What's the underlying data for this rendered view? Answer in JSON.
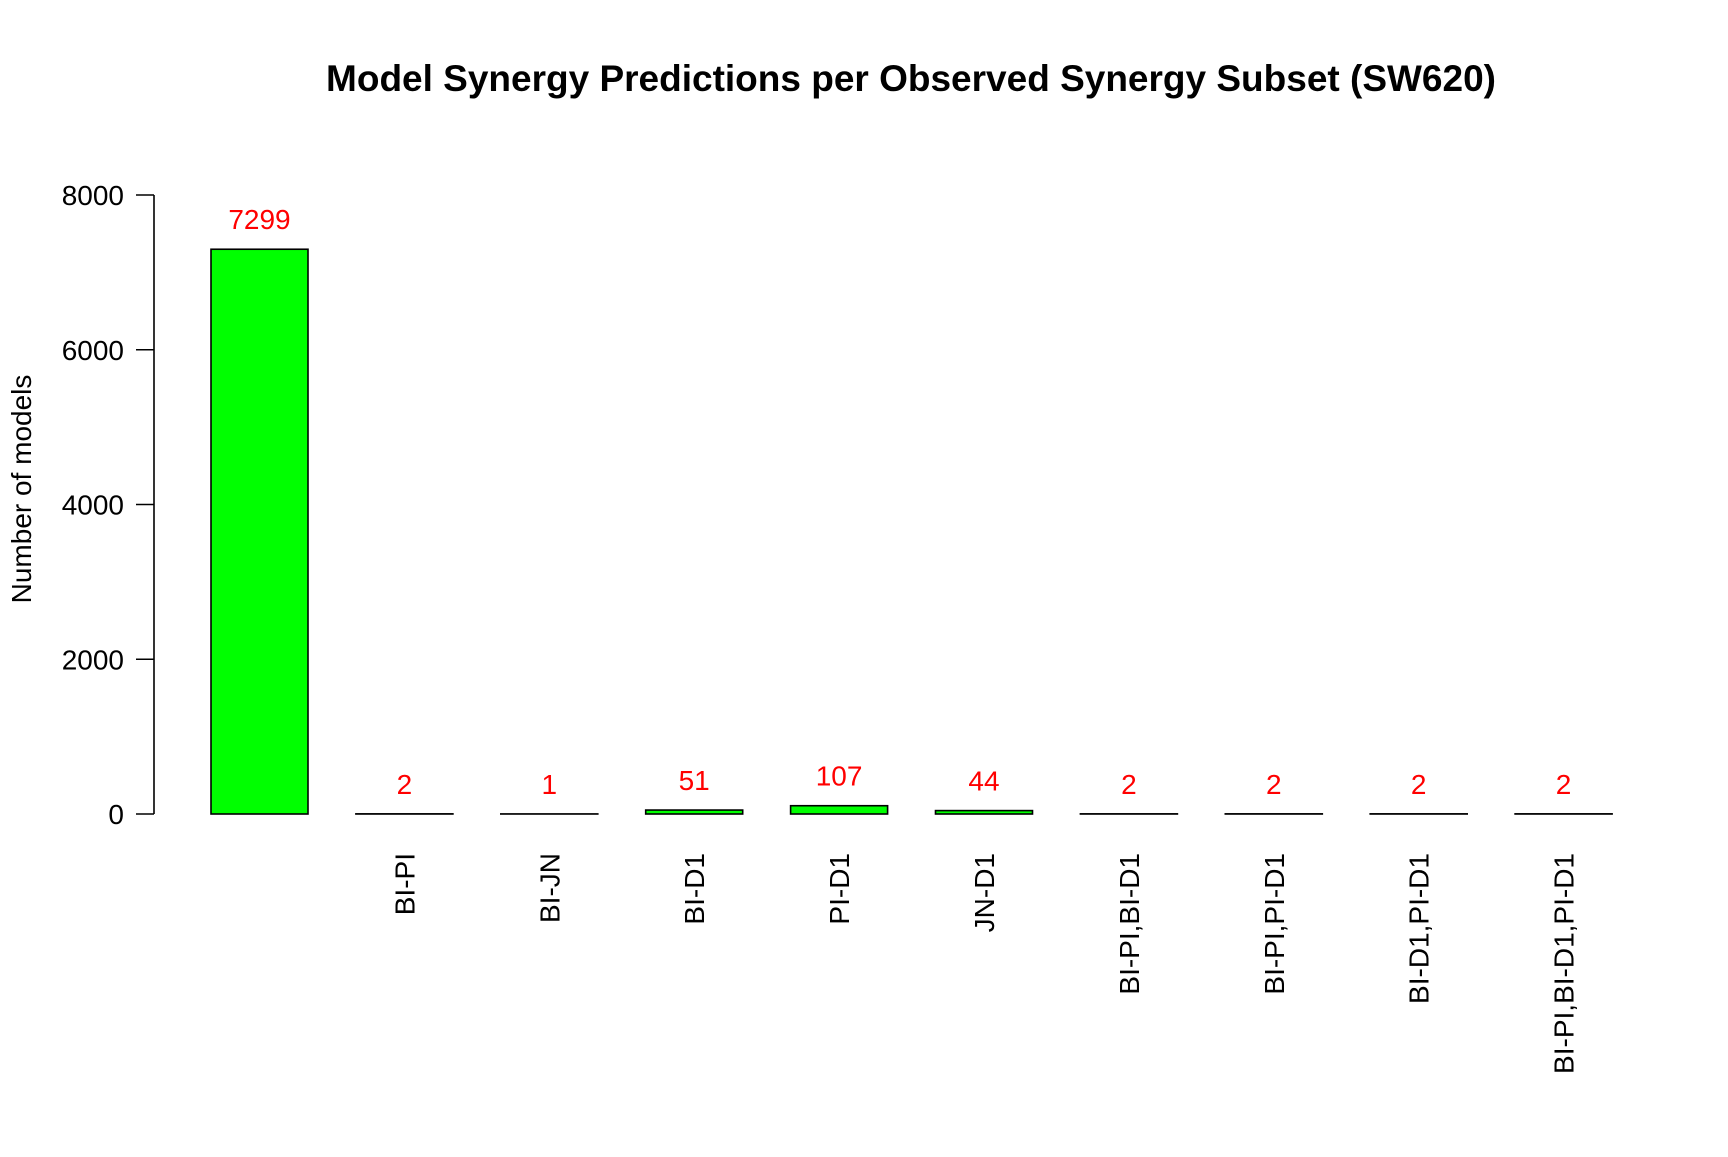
{
  "chart_data": {
    "type": "bar",
    "title": "Model Synergy Predictions per Observed Synergy Subset (SW620)",
    "xlabel": "",
    "ylabel": "Number of models",
    "categories": [
      "",
      "BI-PI",
      "BI-JN",
      "BI-D1",
      "PI-D1",
      "JN-D1",
      "BI-PI,BI-D1",
      "BI-PI,PI-D1",
      "BI-D1,PI-D1",
      "BI-PI,BI-D1,PI-D1"
    ],
    "values": [
      7299,
      2,
      1,
      51,
      107,
      44,
      2,
      2,
      2,
      2
    ],
    "data_labels": [
      "7299",
      "2",
      "1",
      "51",
      "107",
      "44",
      "2",
      "2",
      "2",
      "2"
    ],
    "ylim": [
      0,
      8000
    ],
    "yticks": [
      0,
      2000,
      4000,
      6000,
      8000
    ],
    "ytick_labels": [
      "0",
      "2000",
      "4000",
      "6000",
      "8000"
    ],
    "grid": false,
    "legend": "none",
    "colors": {
      "bar_fill": "#00ff00",
      "bar_stroke": "#000000",
      "data_label": "#ff0000",
      "axis": "#000000"
    }
  }
}
